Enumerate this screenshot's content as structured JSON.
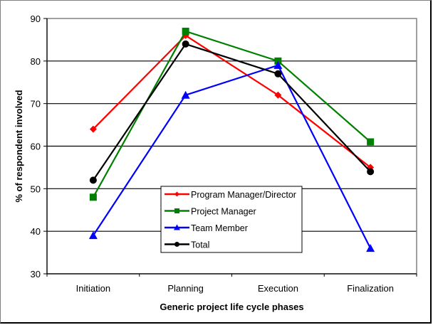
{
  "chart_data": {
    "type": "line",
    "title": "",
    "xlabel": "Generic project life cycle phases",
    "ylabel": "% of respondent involved",
    "ylim": [
      30,
      90
    ],
    "yticks": [
      30,
      40,
      50,
      60,
      70,
      80,
      90
    ],
    "grid": true,
    "legend_position": "center-bottom",
    "categories": [
      "Initiation",
      "Planning",
      "Execution",
      "Finalization"
    ],
    "series": [
      {
        "name": "Program Manager/Director",
        "color": "#ff0000",
        "marker": "diamond",
        "values": [
          64,
          86,
          72,
          55
        ]
      },
      {
        "name": "Project Manager",
        "color": "#008000",
        "marker": "square",
        "values": [
          48,
          87,
          80,
          61
        ]
      },
      {
        "name": "Team Member",
        "color": "#0000ff",
        "marker": "triangle",
        "values": [
          39,
          72,
          79,
          36
        ]
      },
      {
        "name": "Total",
        "color": "#000000",
        "marker": "circle",
        "values": [
          52,
          84,
          77,
          54
        ]
      }
    ]
  }
}
